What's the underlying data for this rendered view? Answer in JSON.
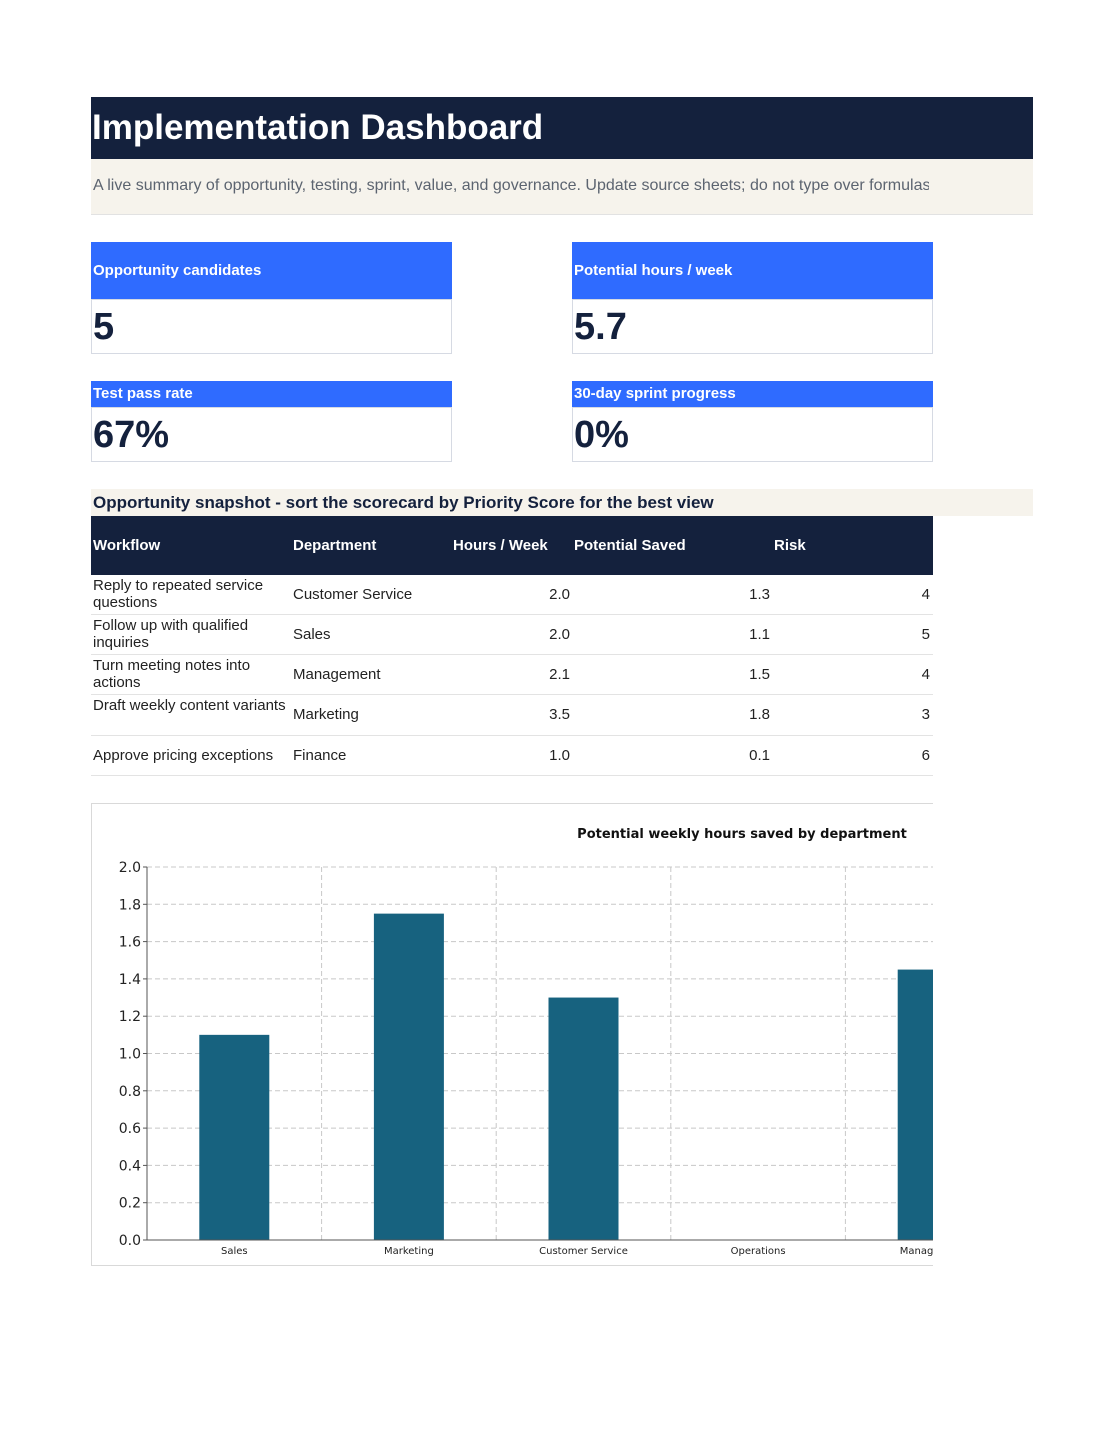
{
  "header": {
    "title": "Implementation Dashboard",
    "subtitle": "A live summary of opportunity, testing, sprint, value, and governance. Update source sheets; do not type over formulas."
  },
  "kpis": [
    {
      "label": "Opportunity candidates",
      "value": "5"
    },
    {
      "label": "Potential hours / week",
      "value": "5.7"
    },
    {
      "label": "Test pass rate",
      "value": "67%"
    },
    {
      "label": "30-day sprint progress",
      "value": "0%"
    }
  ],
  "snapshot": {
    "heading": "Opportunity snapshot - sort the scorecard by Priority Score for the best view",
    "columns": [
      "Workflow",
      "Department",
      "Hours / Week",
      "Potential Saved",
      "Risk"
    ],
    "rows": [
      {
        "workflow": "Reply to repeated service questions",
        "department": "Customer Service",
        "hours": "2.0",
        "saved": "1.3",
        "risk": "4"
      },
      {
        "workflow": "Follow up with qualified inquiries",
        "department": "Sales",
        "hours": "2.0",
        "saved": "1.1",
        "risk": "5"
      },
      {
        "workflow": "Turn meeting notes into actions",
        "department": "Management",
        "hours": "2.1",
        "saved": "1.5",
        "risk": "4"
      },
      {
        "workflow": "Draft weekly content variants",
        "department": "Marketing",
        "hours": "3.5",
        "saved": "1.8",
        "risk": "3"
      },
      {
        "workflow": "Approve pricing exceptions",
        "department": "Finance",
        "hours": "1.0",
        "saved": "0.1",
        "risk": "6"
      }
    ]
  },
  "chart_data": {
    "type": "bar",
    "title": "Potential weekly hours saved by department",
    "categories": [
      "Sales",
      "Marketing",
      "Customer Service",
      "Operations",
      "Management"
    ],
    "values": [
      1.1,
      1.75,
      1.3,
      0,
      1.45
    ],
    "ylim": [
      0,
      2.0
    ],
    "yticks": [
      "0.0",
      "0.2",
      "0.4",
      "0.6",
      "0.8",
      "1.0",
      "1.2",
      "1.4",
      "1.6",
      "1.8",
      "2.0"
    ],
    "grid": true,
    "bar_color": "#17627f"
  },
  "colors": {
    "navy": "#14213d",
    "accent_blue": "#2f6bff",
    "cream": "#f6f3ec"
  }
}
